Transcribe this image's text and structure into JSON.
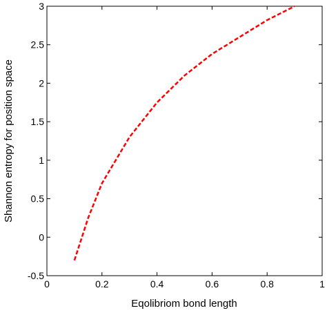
{
  "chart_data": {
    "type": "line",
    "title": "",
    "xlabel": "Eqolibriom bond length",
    "ylabel": "Shannon entropy for position space",
    "xlim": [
      0,
      1
    ],
    "ylim": [
      -0.5,
      3
    ],
    "xticks": [
      "0",
      "0.2",
      "0.4",
      "0.6",
      "0.8",
      "1"
    ],
    "yticks": [
      "-0.5",
      "0",
      "0.5",
      "1",
      "1.5",
      "2",
      "2.5",
      "3"
    ],
    "grid": false,
    "legend": "none",
    "series": [
      {
        "color": "#ff0000",
        "line_style": "dashed",
        "x": [
          0.1,
          0.15,
          0.2,
          0.3,
          0.4,
          0.5,
          0.6,
          0.7,
          0.8,
          0.9
        ],
        "y": [
          -0.3,
          0.25,
          0.7,
          1.3,
          1.75,
          2.1,
          2.38,
          2.6,
          2.82,
          3.0
        ]
      }
    ]
  }
}
